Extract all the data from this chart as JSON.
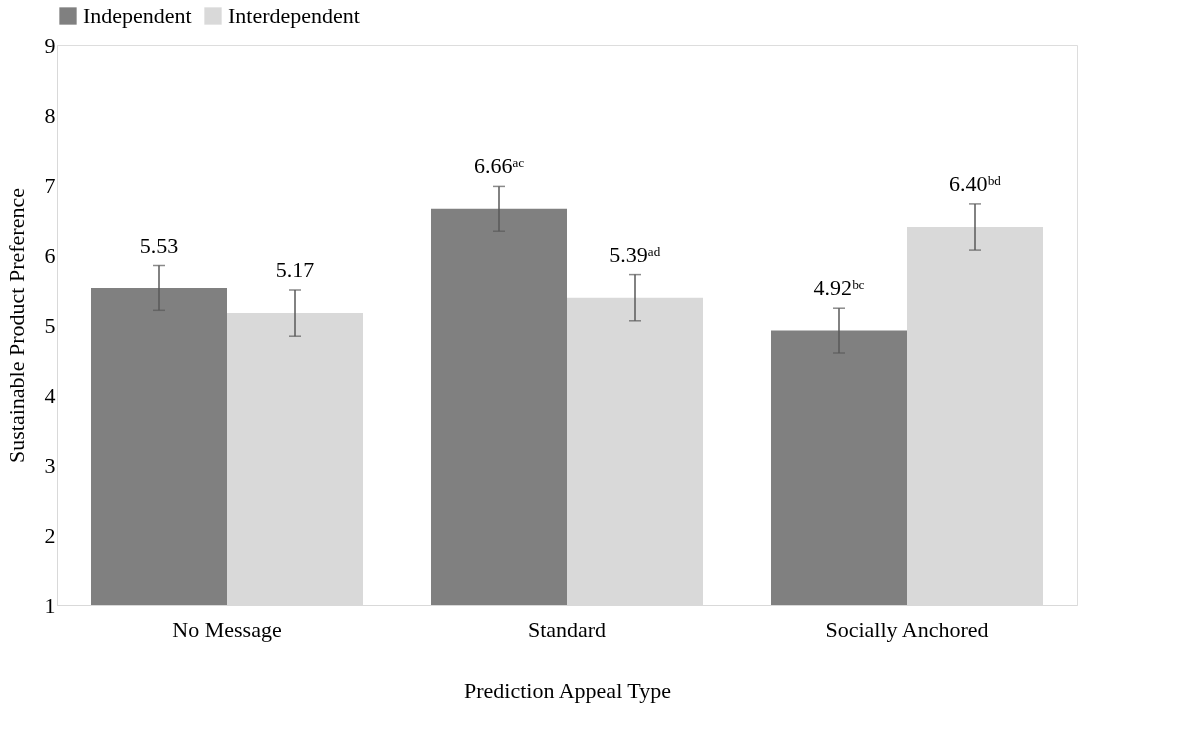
{
  "chart_data": {
    "type": "bar",
    "xlabel": "Prediction Appeal Type",
    "ylabel": "Sustainable Product Preference",
    "categories": [
      "No Message",
      "Standard",
      "Socially Anchored"
    ],
    "series": [
      {
        "name": "Independent",
        "color": "#808080",
        "values": [
          5.53,
          6.66,
          4.92
        ],
        "errors": [
          0.32,
          0.32,
          0.32
        ],
        "value_labels": [
          "5.53",
          "6.66ᵃᶜ",
          "4.92ᵇᶜ"
        ]
      },
      {
        "name": "Interdependent",
        "color": "#d9d9d9",
        "values": [
          5.17,
          5.39,
          6.4
        ],
        "errors": [
          0.33,
          0.33,
          0.33
        ],
        "value_labels": [
          "5.17",
          "5.39ᵃᵈ",
          "6.40ᵇᵈ"
        ]
      }
    ],
    "ylim": [
      1,
      9
    ],
    "yticks": [
      1,
      2,
      3,
      4,
      5,
      6,
      7,
      8,
      9
    ],
    "grid": false,
    "legend": "top"
  }
}
